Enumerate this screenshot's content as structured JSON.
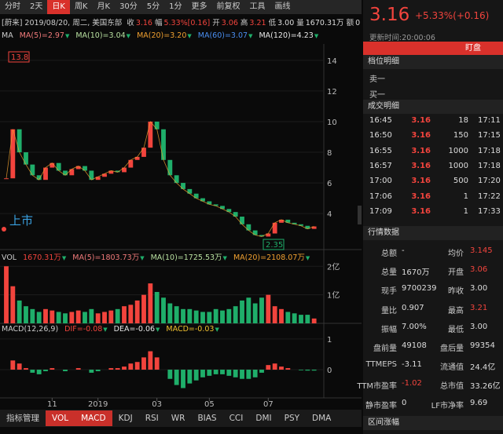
{
  "toolbar": {
    "tabs": [
      "分时",
      "2天",
      "日K",
      "周K",
      "月K",
      "30分",
      "5分",
      "1分",
      "更多",
      "前复权",
      "工具",
      "画线"
    ],
    "active": 2
  },
  "info_bar": {
    "name": "[蔚来]",
    "date": "2019/08/20, 周二, 美国东部",
    "items": [
      {
        "label": "收",
        "value": "3.16",
        "color": "#f2443d"
      },
      {
        "label": "幅",
        "value": "5.33%[0.16]",
        "color": "#f2443d"
      },
      {
        "label": "开",
        "value": "3.06",
        "color": "#f2443d"
      },
      {
        "label": "高",
        "value": "3.21",
        "color": "#f2443d"
      },
      {
        "label": "低",
        "value": "3.00",
        "color": "#dddddd"
      },
      {
        "label": "量",
        "value": "1670.31万",
        "color": "#dddddd"
      },
      {
        "label": "额",
        "value": "0",
        "color": "#dddddd"
      }
    ]
  },
  "ma_legend": [
    {
      "text": "MA",
      "color": "#cccccc"
    },
    {
      "text": "MA(5)=2.97",
      "color": "#f07a7a"
    },
    {
      "text": "MA(10)=3.04",
      "color": "#b8e0a0"
    },
    {
      "text": "MA(20)=3.20",
      "color": "#f0a030"
    },
    {
      "text": "MA(60)=3.07",
      "color": "#4a8ef0"
    },
    {
      "text": "MA(120)=4.23",
      "color": "#e8e8e8"
    }
  ],
  "price_chart": {
    "ylim": [
      1.65,
      15.07
    ],
    "yticks": [
      4,
      6,
      8,
      10,
      12,
      14
    ],
    "max_label": "13.8",
    "min_label": "2.35",
    "ipo_label": "上市",
    "close": [
      6.3,
      9.5,
      8.0,
      7.2,
      6.5,
      6.2,
      7.0,
      7.3,
      6.8,
      6.5,
      6.9,
      7.1,
      6.8,
      6.2,
      6.4,
      6.6,
      6.8,
      6.7,
      7.0,
      7.5,
      7.7,
      8.3,
      10.0,
      9.5,
      7.5,
      6.5,
      6.0,
      5.6,
      5.3,
      5.0,
      4.8,
      4.6,
      4.5,
      4.3,
      4.1,
      3.8,
      3.3,
      2.9,
      2.6,
      2.5,
      2.7,
      3.4,
      3.6,
      3.4,
      3.3,
      3.2,
      3.0,
      3.16
    ]
  },
  "volume_chart": {
    "header": [
      {
        "text": "VOL",
        "color": "#cccccc"
      },
      {
        "text": "1670.31万",
        "color": "#f2443d"
      },
      {
        "text": "MA(5)=1803.73万",
        "color": "#f07a7a"
      },
      {
        "text": "MA(10)=1725.53万",
        "color": "#b8e0a0"
      },
      {
        "text": "MA(20)=2108.07万",
        "color": "#f0a030"
      }
    ],
    "ylim": [
      0,
      2.2
    ],
    "yticks": [
      {
        "value": 1,
        "label": "1亿"
      },
      {
        "value": 2,
        "label": "2亿"
      }
    ],
    "values": [
      2.0,
      1.3,
      0.8,
      0.6,
      0.5,
      0.4,
      0.5,
      0.45,
      0.4,
      0.35,
      0.4,
      0.45,
      0.4,
      0.5,
      0.35,
      0.4,
      0.45,
      0.5,
      0.6,
      0.65,
      0.8,
      1.0,
      1.4,
      1.1,
      0.9,
      0.7,
      0.6,
      0.5,
      0.5,
      0.45,
      0.4,
      0.4,
      0.5,
      0.45,
      0.5,
      0.6,
      0.8,
      0.9,
      0.7,
      0.9,
      1.0,
      0.6,
      0.5,
      0.4,
      0.35,
      0.3,
      0.3,
      0.17
    ]
  },
  "macd_chart": {
    "header": [
      {
        "text": "MACD(12,26,9)",
        "color": "#cccccc"
      },
      {
        "text": "DIF=-0.08",
        "color": "#f2443d"
      },
      {
        "text": "DEA=-0.06",
        "color": "#e8e8e8"
      },
      {
        "text": "MACD=-0.03",
        "color": "#f0c030"
      }
    ],
    "ylim": [
      -0.92,
      1.1
    ],
    "yticks": [
      0,
      1
    ],
    "values": [
      0,
      0.3,
      0.2,
      0.05,
      -0.1,
      -0.15,
      -0.05,
      0.05,
      0,
      -0.05,
      0,
      0.05,
      0,
      -0.1,
      -0.05,
      0,
      0.05,
      0.05,
      0.1,
      0.2,
      0.25,
      0.4,
      0.6,
      0.4,
      0,
      -0.3,
      -0.5,
      -0.6,
      -0.45,
      -0.35,
      -0.25,
      -0.2,
      -0.15,
      -0.15,
      -0.2,
      -0.25,
      -0.3,
      -0.3,
      -0.25,
      -0.1,
      0.15,
      0.2,
      0.1,
      0.05,
      0,
      -0.02,
      -0.03,
      -0.03
    ]
  },
  "x_labels": [
    {
      "value": 7,
      "label": "11"
    },
    {
      "value": 14,
      "label": "2019"
    },
    {
      "value": 23,
      "label": "03"
    },
    {
      "value": 31,
      "label": "05"
    },
    {
      "value": 40,
      "label": "07"
    }
  ],
  "bottom_tabs": {
    "tabs": [
      "指标管理",
      "VOL",
      "MACD",
      "KDJ",
      "RSI",
      "WR",
      "BIAS",
      "CCI",
      "DMI",
      "PSY",
      "DMA"
    ],
    "active": [
      1,
      2
    ]
  },
  "quote": {
    "price": "3.16",
    "change": "+5.33%(+0.16)",
    "updated": "更新时间:20:00:06",
    "watch": "盯盘"
  },
  "depth": {
    "title": "档位明细",
    "rows": [
      "卖一",
      "买一"
    ]
  },
  "trades": {
    "title": "成交明细",
    "rows": [
      [
        "16:45",
        "3.16",
        "18",
        "17:11"
      ],
      [
        "16:50",
        "3.16",
        "150",
        "17:15"
      ],
      [
        "16:55",
        "3.16",
        "1000",
        "17:18"
      ],
      [
        "16:57",
        "3.16",
        "1000",
        "17:18"
      ],
      [
        "17:00",
        "3.16",
        "500",
        "17:20"
      ],
      [
        "17:06",
        "3.16",
        "1",
        "17:22"
      ],
      [
        "17:09",
        "3.16",
        "1",
        "17:33"
      ]
    ]
  },
  "market_data": {
    "title": "行情数据",
    "rows": [
      [
        {
          "label": "总额",
          "value": "-"
        },
        {
          "label": "均价",
          "value": "3.145",
          "red": true
        }
      ],
      [
        {
          "label": "总量",
          "value": "1670万"
        },
        {
          "label": "开盘",
          "value": "3.06",
          "red": true
        }
      ],
      [
        {
          "label": "现手",
          "value": "9700239"
        },
        {
          "label": "昨收",
          "value": "3.00"
        }
      ],
      [
        {
          "label": "量比",
          "value": "0.907"
        },
        {
          "label": "最高",
          "value": "3.21",
          "red": true
        }
      ],
      [
        {
          "label": "振幅",
          "value": "7.00%"
        },
        {
          "label": "最低",
          "value": "3.00"
        }
      ],
      [
        {
          "label": "盘前量",
          "value": "49108"
        },
        {
          "label": "盘后量",
          "value": "99354"
        }
      ],
      [
        {
          "label": "TTMEPS",
          "value": "-3.11"
        },
        {
          "label": "流通值",
          "value": "24.4亿"
        }
      ],
      [
        {
          "label": "TTM市盈率",
          "value": "-1.02",
          "red": true
        },
        {
          "label": "总市值",
          "value": "33.26亿"
        }
      ],
      [
        {
          "label": "静市盈率",
          "value": "0"
        },
        {
          "label": "LF市净率",
          "value": "9.69"
        }
      ]
    ]
  },
  "range_title": "区间涨幅"
}
